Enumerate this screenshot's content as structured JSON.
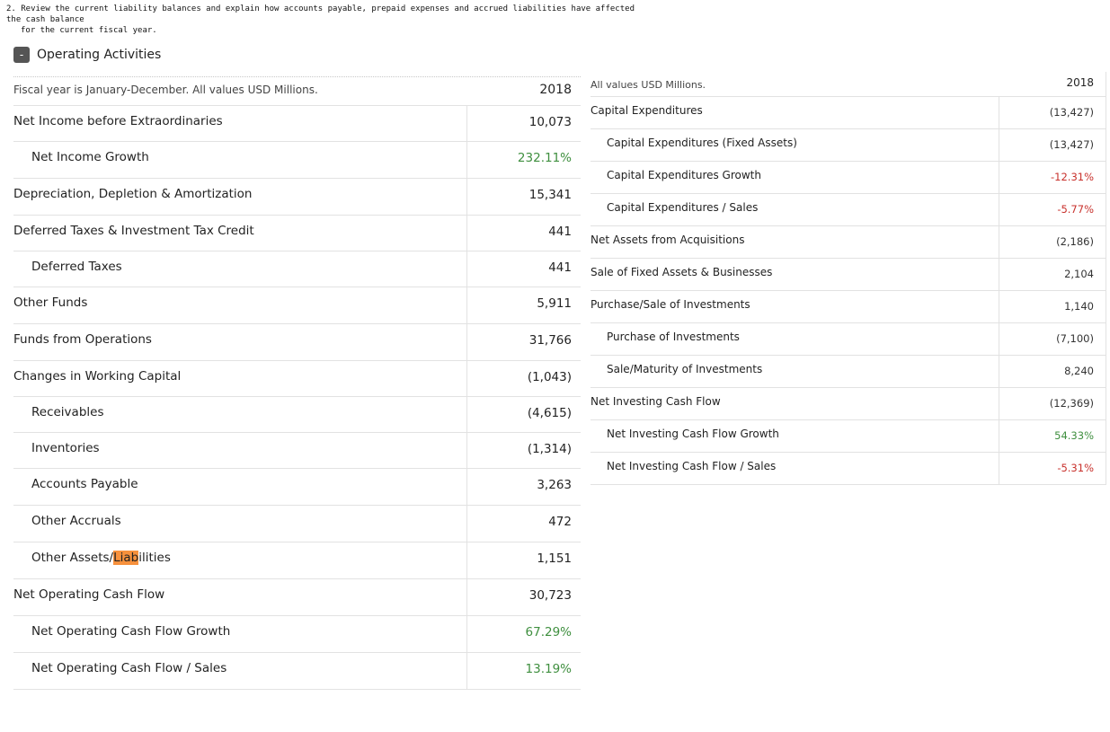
{
  "question": {
    "line1": "2.  Review the current liability balances and explain how accounts payable, prepaid expenses and accrued liabilities have affected the cash balance",
    "line2": "for the current fiscal year."
  },
  "section": {
    "toggle_symbol": "-",
    "title": "Operating Activities"
  },
  "operating": {
    "header_label": "Fiscal year is January-December. All values USD Millions.",
    "header_year": "2018",
    "rows": [
      {
        "label": "Net Income before Extraordinaries",
        "value": "10,073"
      },
      {
        "label": "Net Income Growth",
        "value": "232.11%"
      },
      {
        "label": "Depreciation, Depletion & Amortization",
        "value": "15,341"
      },
      {
        "label": "Deferred Taxes & Investment Tax Credit",
        "value": "441"
      },
      {
        "label": "Deferred Taxes",
        "value": "441"
      },
      {
        "label": "Other Funds",
        "value": "5,911"
      },
      {
        "label": "Funds from Operations",
        "value": "31,766"
      },
      {
        "label": "Changes in Working Capital",
        "value": "(1,043)"
      },
      {
        "label": "Receivables",
        "value": "(4,615)"
      },
      {
        "label": "Inventories",
        "value": "(1,314)"
      },
      {
        "label": "Accounts Payable",
        "value": "3,263"
      },
      {
        "label": "Other Accruals",
        "value": "472"
      },
      {
        "label_pre": "Other Assets/",
        "label_hl": "Liab",
        "label_post": "ilities",
        "value": "1,151"
      },
      {
        "label": "Net Operating Cash Flow",
        "value": "30,723"
      },
      {
        "label": "Net Operating Cash Flow Growth",
        "value": "67.29%"
      },
      {
        "label": "Net Operating Cash Flow / Sales",
        "value": "13.19%"
      }
    ]
  },
  "investing": {
    "header_label": "All values USD Millions.",
    "header_year": "2018",
    "rows": [
      {
        "label": "Capital Expenditures",
        "value": "(13,427)"
      },
      {
        "label": "Capital Expenditures (Fixed Assets)",
        "value": "(13,427)"
      },
      {
        "label": "Capital Expenditures Growth",
        "value": "-12.31%"
      },
      {
        "label": "Capital Expenditures / Sales",
        "value": "-5.77%"
      },
      {
        "label": "Net Assets from Acquisitions",
        "value": "(2,186)"
      },
      {
        "label": "Sale of Fixed Assets & Businesses",
        "value": "2,104"
      },
      {
        "label": "Purchase/Sale of Investments",
        "value": "1,140"
      },
      {
        "label": "Purchase of Investments",
        "value": "(7,100)"
      },
      {
        "label": "Sale/Maturity of Investments",
        "value": "8,240"
      },
      {
        "label": "Net Investing Cash Flow",
        "value": "(12,369)"
      },
      {
        "label": "Net Investing Cash Flow Growth",
        "value": "54.33%"
      },
      {
        "label": "Net Investing Cash Flow / Sales",
        "value": "-5.31%"
      }
    ]
  },
  "colors": {
    "positive": "#3f8f3f",
    "negative": "#c8312c",
    "highlight": "#f7913d"
  }
}
